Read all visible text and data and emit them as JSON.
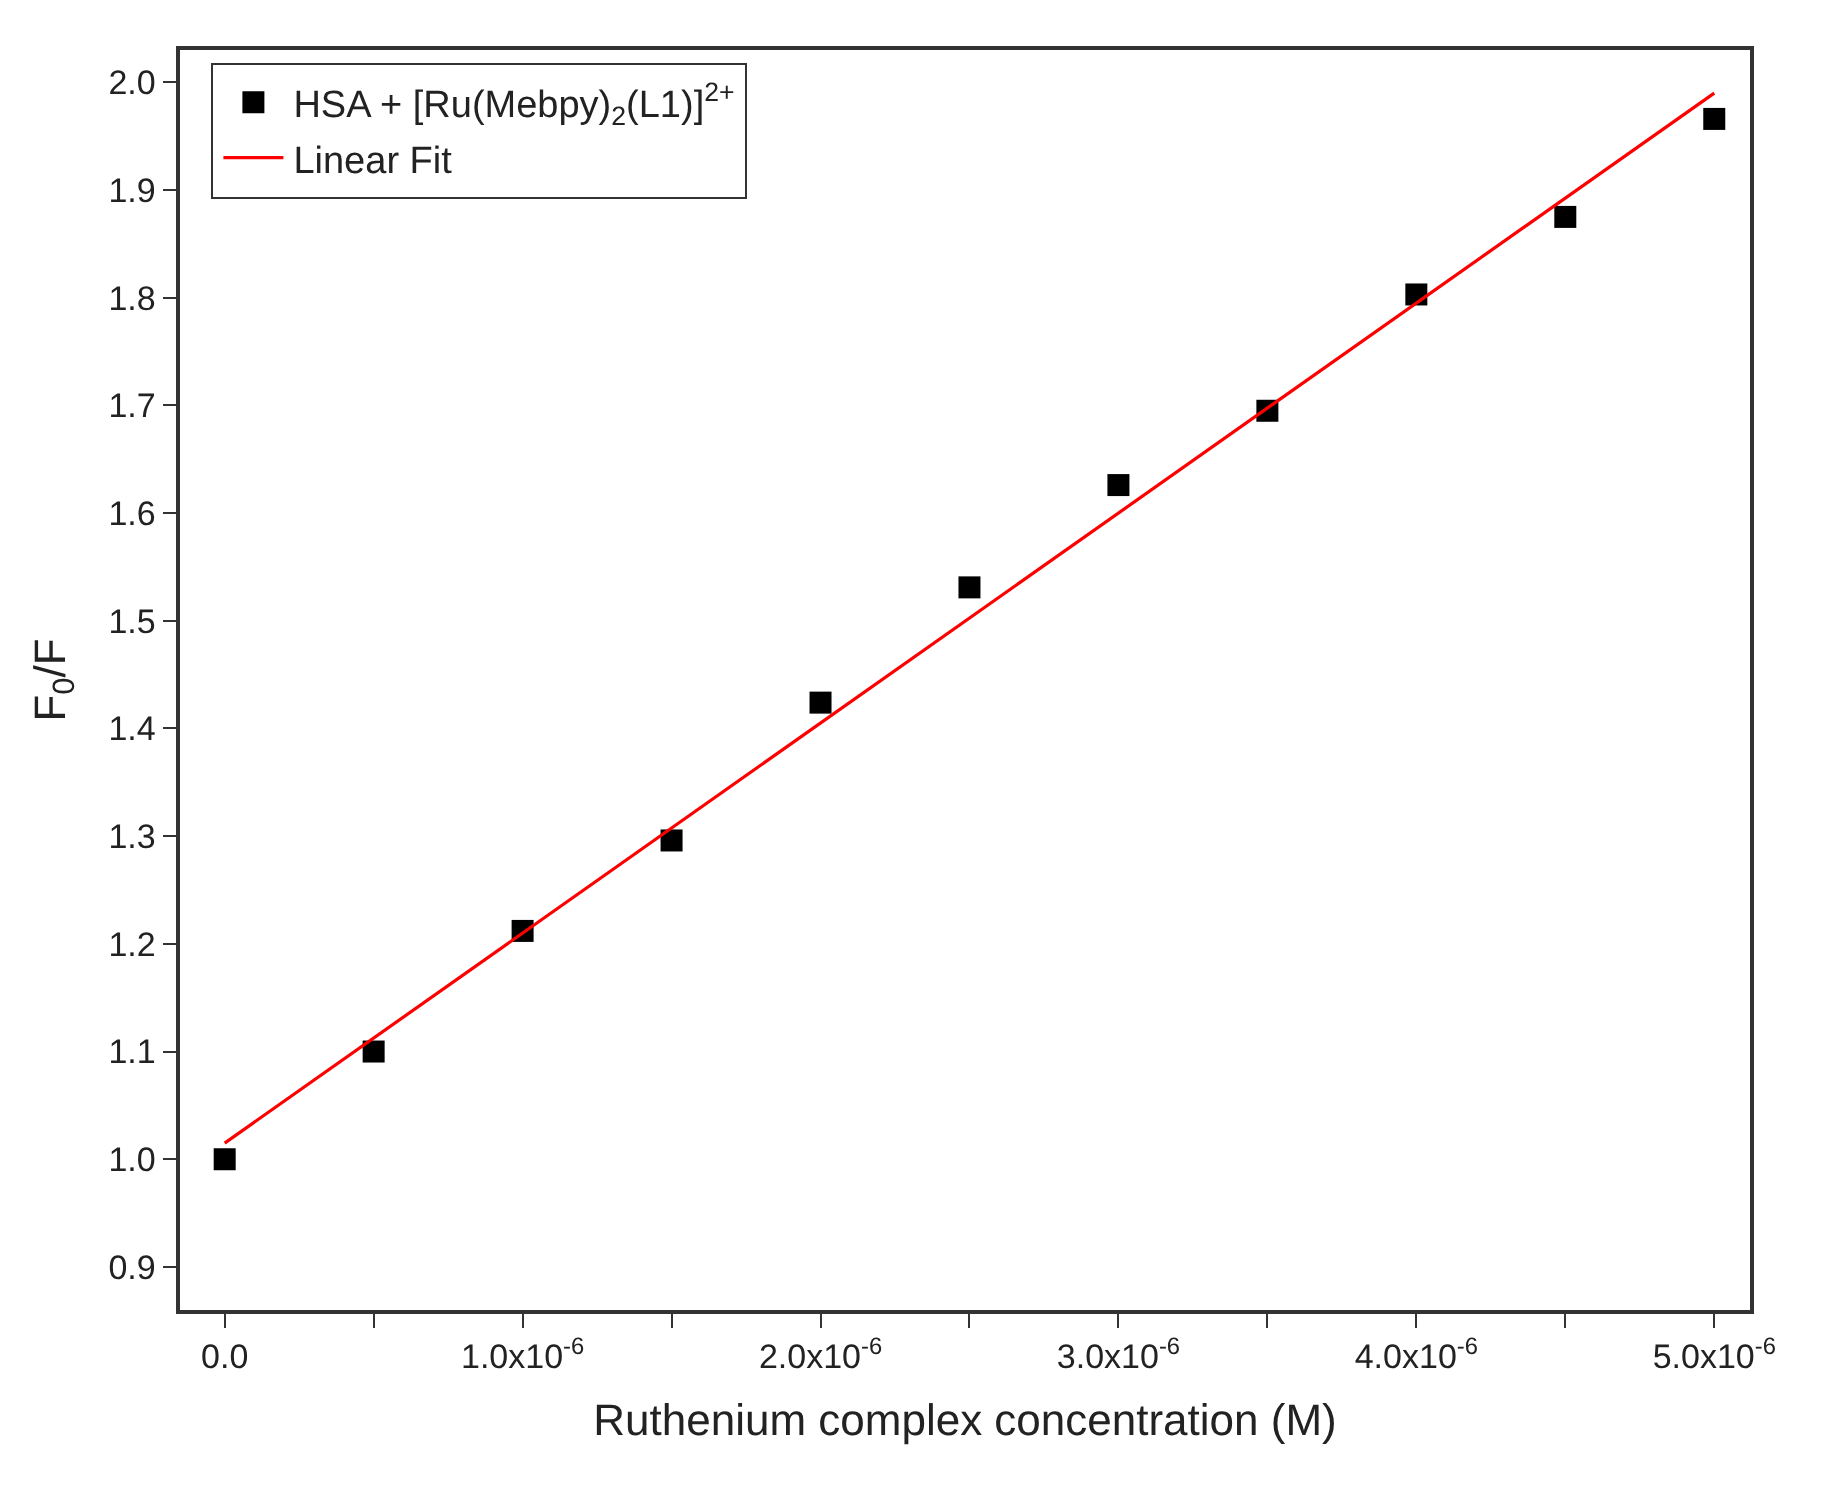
{
  "chart_data": {
    "type": "scatter",
    "xlabel": "Ruthenium complex concentration (M)",
    "ylabel": "F$_{0}$/F",
    "x": [
      0,
      5e-07,
      1e-06,
      1.5e-06,
      2e-06,
      2.5e-06,
      3e-06,
      3.5e-06,
      4e-06,
      4.5e-06,
      5e-06
    ],
    "series": [
      {
        "name": "HSA + [Ru(Mebpy)$_{2}$(L1)]$^{2+}$",
        "color": "#000000",
        "marker": "square",
        "values": [
          1.0,
          1.1,
          1.212,
          1.296,
          1.424,
          1.531,
          1.626,
          1.695,
          1.803,
          1.875,
          1.966
        ]
      },
      {
        "name": "Linear Fit",
        "type": "line",
        "color": "#ff0000",
        "line_style": "solid",
        "x": [
          0,
          5e-06
        ],
        "values": [
          1.015,
          1.99
        ]
      }
    ],
    "xlim": [
      -1.5e-07,
      5.12e-06
    ],
    "xticks": [
      {
        "value": 0,
        "label": "0.0"
      },
      {
        "value": 5e-07,
        "label": null
      },
      {
        "value": 1e-06,
        "label": "1.0x10$^{-6}$"
      },
      {
        "value": 1.5e-06,
        "label": null
      },
      {
        "value": 2e-06,
        "label": "2.0x10$^{-6}$"
      },
      {
        "value": 2.5e-06,
        "label": null
      },
      {
        "value": 3e-06,
        "label": "3.0x10$^{-6}$"
      },
      {
        "value": 3.5e-06,
        "label": null
      },
      {
        "value": 4e-06,
        "label": "4.0x10$^{-6}$"
      },
      {
        "value": 4.5e-06,
        "label": null
      },
      {
        "value": 5e-06,
        "label": "5.0x10$^{-6}$"
      }
    ],
    "ylim": [
      0.86,
      2.03
    ],
    "yticks": [
      0.9,
      {
        "value": 1,
        "label": "1.0"
      },
      1.1,
      1.2,
      1.3,
      1.4,
      1.5,
      1.6,
      1.7,
      1.8,
      1.9,
      {
        "value": 2,
        "label": "2.0"
      }
    ],
    "legend": "top left"
  }
}
